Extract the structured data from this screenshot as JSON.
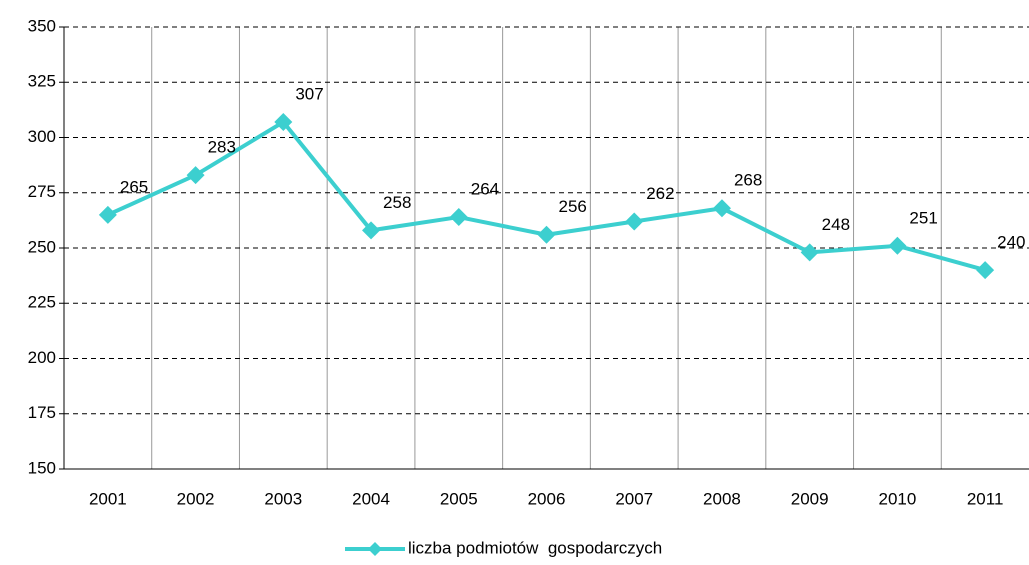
{
  "chart_data": {
    "type": "line",
    "categories": [
      "2001",
      "2002",
      "2003",
      "2004",
      "2005",
      "2006",
      "2007",
      "2008",
      "2009",
      "2010",
      "2011"
    ],
    "series": [
      {
        "name": "liczba podmiotów  gospodarczych",
        "color": "#3ccfcf",
        "values": [
          265,
          283,
          307,
          258,
          264,
          256,
          262,
          268,
          248,
          251,
          240
        ]
      }
    ],
    "ylim": [
      150,
      350
    ],
    "yticks": [
      150,
      175,
      200,
      225,
      250,
      275,
      300,
      325,
      350
    ],
    "grid": true,
    "legend": "bottom"
  }
}
